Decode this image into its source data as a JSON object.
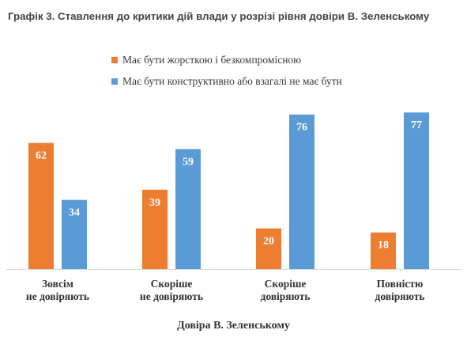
{
  "chart_data": {
    "type": "bar",
    "title": "Графік 3. Ставлення до критики дій влади у розрізі рівня довіри В. Зеленському",
    "xlabel": "Довіра В. Зеленському",
    "ylabel": "",
    "ylim": [
      0,
      80
    ],
    "grid": false,
    "legend_position": "top",
    "categories": [
      [
        "Зовсім",
        "не довіряють"
      ],
      [
        "Скоріше",
        "не довіряють"
      ],
      [
        "Скоріше",
        "довіряють"
      ],
      [
        "Повністю",
        "довіряють"
      ]
    ],
    "series": [
      {
        "name": "Має бути жорсткою і безкомпромісною",
        "color": "#ED7D31",
        "values": [
          62,
          39,
          20,
          18
        ]
      },
      {
        "name": "Має бути конструктивно або взагалі не має бути",
        "color": "#5B9BD5",
        "values": [
          34,
          59,
          76,
          77
        ]
      }
    ]
  }
}
